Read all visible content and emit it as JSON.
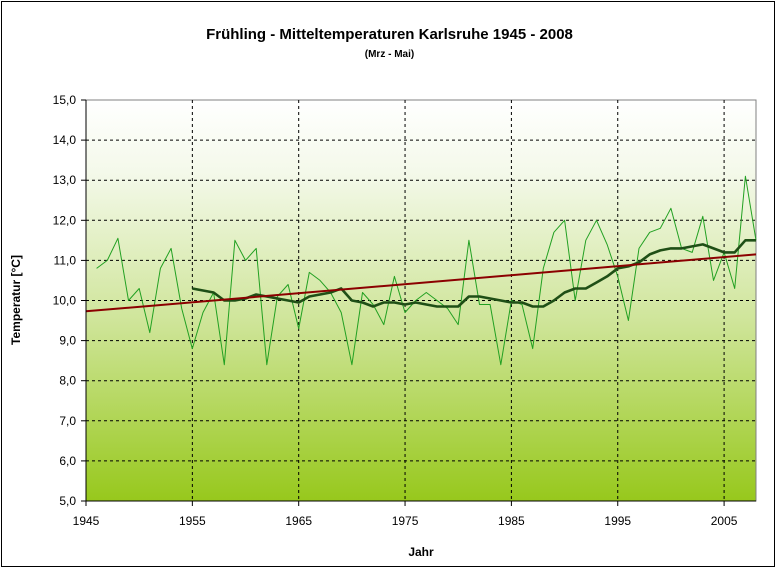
{
  "chart_data": {
    "type": "line",
    "title": "Frühling - Mitteltemperaturen Karlsruhe 1945 - 2008",
    "subtitle": "(Mrz - Mai)",
    "xlabel": "Jahr",
    "ylabel": "Temperatur [°C]",
    "xlim": [
      1945,
      2008
    ],
    "ylim": [
      5.0,
      15.0
    ],
    "x_ticks": [
      "1945",
      "1955",
      "1965",
      "1975",
      "1985",
      "1995",
      "2005"
    ],
    "y_ticks": [
      "5,0",
      "6,0",
      "7,0",
      "8,0",
      "9,0",
      "10,0",
      "11,0",
      "12,0",
      "13,0",
      "14,0",
      "15,0"
    ],
    "grid": true,
    "legend": "none",
    "series": [
      {
        "style": "annual",
        "color": "#22a022",
        "x": [
          1946,
          1947,
          1948,
          1949,
          1950,
          1951,
          1952,
          1953,
          1954,
          1955,
          1956,
          1957,
          1958,
          1959,
          1960,
          1961,
          1962,
          1963,
          1964,
          1965,
          1966,
          1967,
          1968,
          1969,
          1970,
          1971,
          1972,
          1973,
          1974,
          1975,
          1976,
          1977,
          1978,
          1979,
          1980,
          1981,
          1982,
          1983,
          1984,
          1985,
          1986,
          1987,
          1988,
          1989,
          1990,
          1991,
          1992,
          1993,
          1994,
          1995,
          1996,
          1997,
          1998,
          1999,
          2000,
          2001,
          2002,
          2003,
          2004,
          2005,
          2006,
          2007,
          2008
        ],
        "values": [
          10.8,
          11.0,
          11.55,
          10.0,
          10.3,
          9.2,
          10.8,
          11.3,
          9.8,
          8.8,
          9.7,
          10.2,
          8.4,
          11.5,
          11.0,
          11.3,
          8.4,
          10.1,
          10.4,
          9.3,
          10.7,
          10.5,
          10.2,
          9.7,
          8.4,
          10.2,
          9.9,
          9.4,
          10.6,
          9.7,
          10.0,
          10.2,
          10.0,
          9.8,
          9.4,
          11.5,
          9.9,
          9.9,
          8.4,
          10.0,
          9.9,
          8.8,
          10.8,
          11.7,
          12.0,
          10.0,
          11.5,
          12.0,
          11.4,
          10.6,
          9.5,
          11.3,
          11.7,
          11.8,
          12.3,
          11.3,
          11.2,
          12.1,
          10.5,
          11.2,
          10.3,
          13.1,
          11.5
        ]
      },
      {
        "style": "moving-average",
        "color": "#1f4f16",
        "x": [
          1955,
          1956,
          1957,
          1958,
          1959,
          1960,
          1961,
          1962,
          1963,
          1964,
          1965,
          1966,
          1967,
          1968,
          1969,
          1970,
          1971,
          1972,
          1973,
          1974,
          1975,
          1976,
          1977,
          1978,
          1979,
          1980,
          1981,
          1982,
          1983,
          1984,
          1985,
          1986,
          1987,
          1988,
          1989,
          1990,
          1991,
          1992,
          1993,
          1994,
          1995,
          1996,
          1997,
          1998,
          1999,
          2000,
          2001,
          2002,
          2003,
          2004,
          2005,
          2006,
          2007,
          2008
        ],
        "values": [
          10.3,
          10.25,
          10.2,
          10.0,
          10.0,
          10.05,
          10.15,
          10.1,
          10.05,
          10.0,
          9.95,
          10.1,
          10.15,
          10.2,
          10.3,
          10.0,
          9.95,
          9.85,
          9.95,
          9.95,
          9.9,
          9.95,
          9.9,
          9.85,
          9.85,
          9.85,
          10.1,
          10.1,
          10.05,
          10.0,
          9.95,
          9.95,
          9.85,
          9.85,
          10.0,
          10.2,
          10.3,
          10.3,
          10.45,
          10.6,
          10.8,
          10.85,
          10.95,
          11.15,
          11.25,
          11.3,
          11.3,
          11.35,
          11.4,
          11.3,
          11.2,
          11.2,
          11.5,
          11.5
        ]
      },
      {
        "style": "trend",
        "color": "#8b0000",
        "x": [
          1945,
          2008
        ],
        "values": [
          9.73,
          11.15
        ]
      }
    ]
  }
}
